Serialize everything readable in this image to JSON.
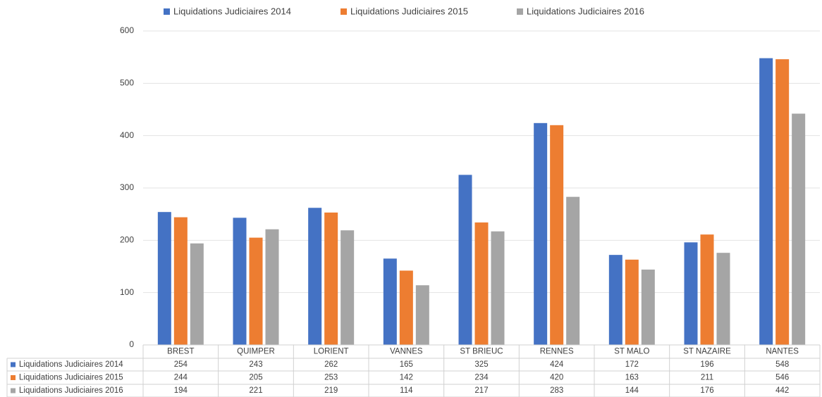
{
  "chart_data": {
    "type": "bar",
    "categories": [
      "BREST",
      "QUIMPER",
      "LORIENT",
      "VANNES",
      "ST BRIEUC",
      "RENNES",
      "ST MALO",
      "ST NAZAIRE",
      "NANTES"
    ],
    "series": [
      {
        "name": "Liquidations Judiciaires 2014",
        "color": "#4472c4",
        "values": [
          254,
          243,
          262,
          165,
          325,
          424,
          172,
          196,
          548
        ]
      },
      {
        "name": "Liquidations Judiciaires 2015",
        "color": "#ed7d31",
        "values": [
          244,
          205,
          253,
          142,
          234,
          420,
          163,
          211,
          546
        ]
      },
      {
        "name": "Liquidations Judiciaires 2016",
        "color": "#a5a5a5",
        "values": [
          194,
          221,
          219,
          114,
          217,
          283,
          144,
          176,
          442
        ]
      }
    ],
    "ylim": [
      0,
      600
    ],
    "yticks": [
      0,
      100,
      200,
      300,
      400,
      500,
      600
    ],
    "grid": true,
    "legend": "top"
  }
}
